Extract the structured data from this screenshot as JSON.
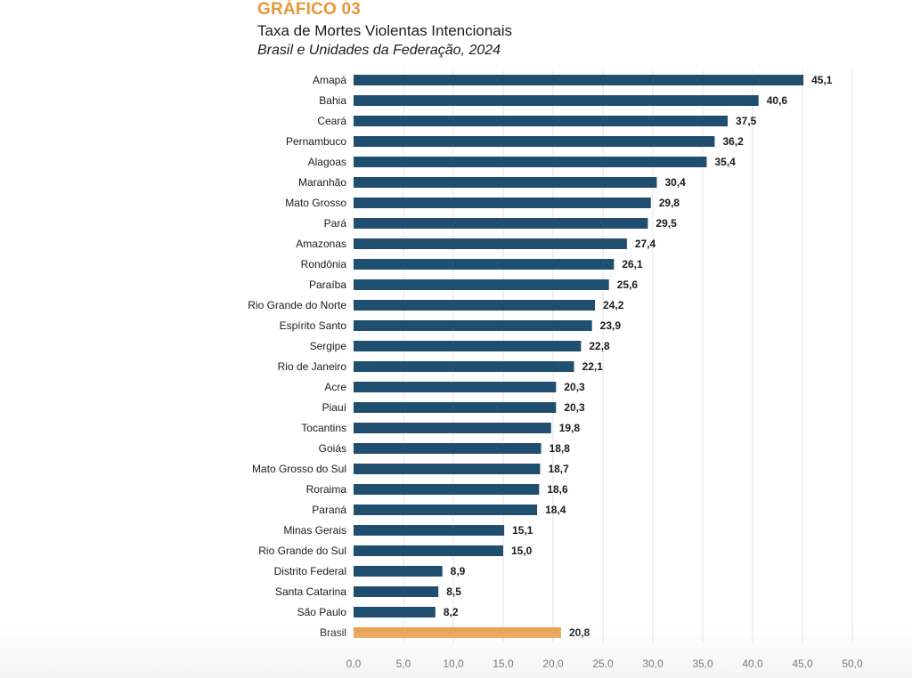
{
  "header": {
    "kicker": "GRÁFICO 03",
    "title": "Taxa de Mortes Violentas Intencionais",
    "subtitle": "Brasil e Unidades da Federação, 2024"
  },
  "colors": {
    "bar": "#1F4E6E",
    "highlight": "#E8A04D",
    "kicker": "#E8973A",
    "grid": "#E3E3E3"
  },
  "chart_data": {
    "type": "bar",
    "orientation": "horizontal",
    "categories": [
      "Amapá",
      "Bahia",
      "Ceará",
      "Pernambuco",
      "Alagoas",
      "Maranhão",
      "Mato Grosso",
      "Pará",
      "Amazonas",
      "Rondônia",
      "Paraíba",
      "Rio Grande do Norte",
      "Espírito Santo",
      "Sergipe",
      "Rio de Janeiro",
      "Acre",
      "Piauí",
      "Tocantins",
      "Goiás",
      "Mato Grosso do Sul",
      "Roraima",
      "Paraná",
      "Minas Gerais",
      "Rio Grande do Sul",
      "Distrito Federal",
      "Santa Catarina",
      "São Paulo",
      "Brasil"
    ],
    "values": [
      45.1,
      40.6,
      37.5,
      36.2,
      35.4,
      30.4,
      29.8,
      29.5,
      27.4,
      26.1,
      25.6,
      24.2,
      23.9,
      22.8,
      22.1,
      20.3,
      20.3,
      19.8,
      18.8,
      18.7,
      18.6,
      18.4,
      15.1,
      15.0,
      8.9,
      8.5,
      8.2,
      20.8
    ],
    "value_labels": [
      "45,1",
      "40,6",
      "37,5",
      "36,2",
      "35,4",
      "30,4",
      "29,8",
      "29,5",
      "27,4",
      "26,1",
      "25,6",
      "24,2",
      "23,9",
      "22,8",
      "22,1",
      "20,3",
      "20,3",
      "19,8",
      "18,8",
      "18,7",
      "18,6",
      "18,4",
      "15,1",
      "15,0",
      "8,9",
      "8,5",
      "8,2",
      "20,8"
    ],
    "highlight_category": "Brasil",
    "xlim": [
      0,
      50
    ],
    "xticks": [
      0,
      5,
      10,
      15,
      20,
      25,
      30,
      35,
      40,
      45,
      50
    ],
    "xtick_labels": [
      "0,0",
      "5,0",
      "10,0",
      "15,0",
      "20,0",
      "25,0",
      "30,0",
      "35,0",
      "40,0",
      "45,0",
      "50,0"
    ],
    "grid": true,
    "legend": "none",
    "title": "Taxa de Mortes Violentas Intencionais",
    "subtitle": "Brasil e Unidades da Federação, 2024",
    "xlabel": "",
    "ylabel": ""
  }
}
